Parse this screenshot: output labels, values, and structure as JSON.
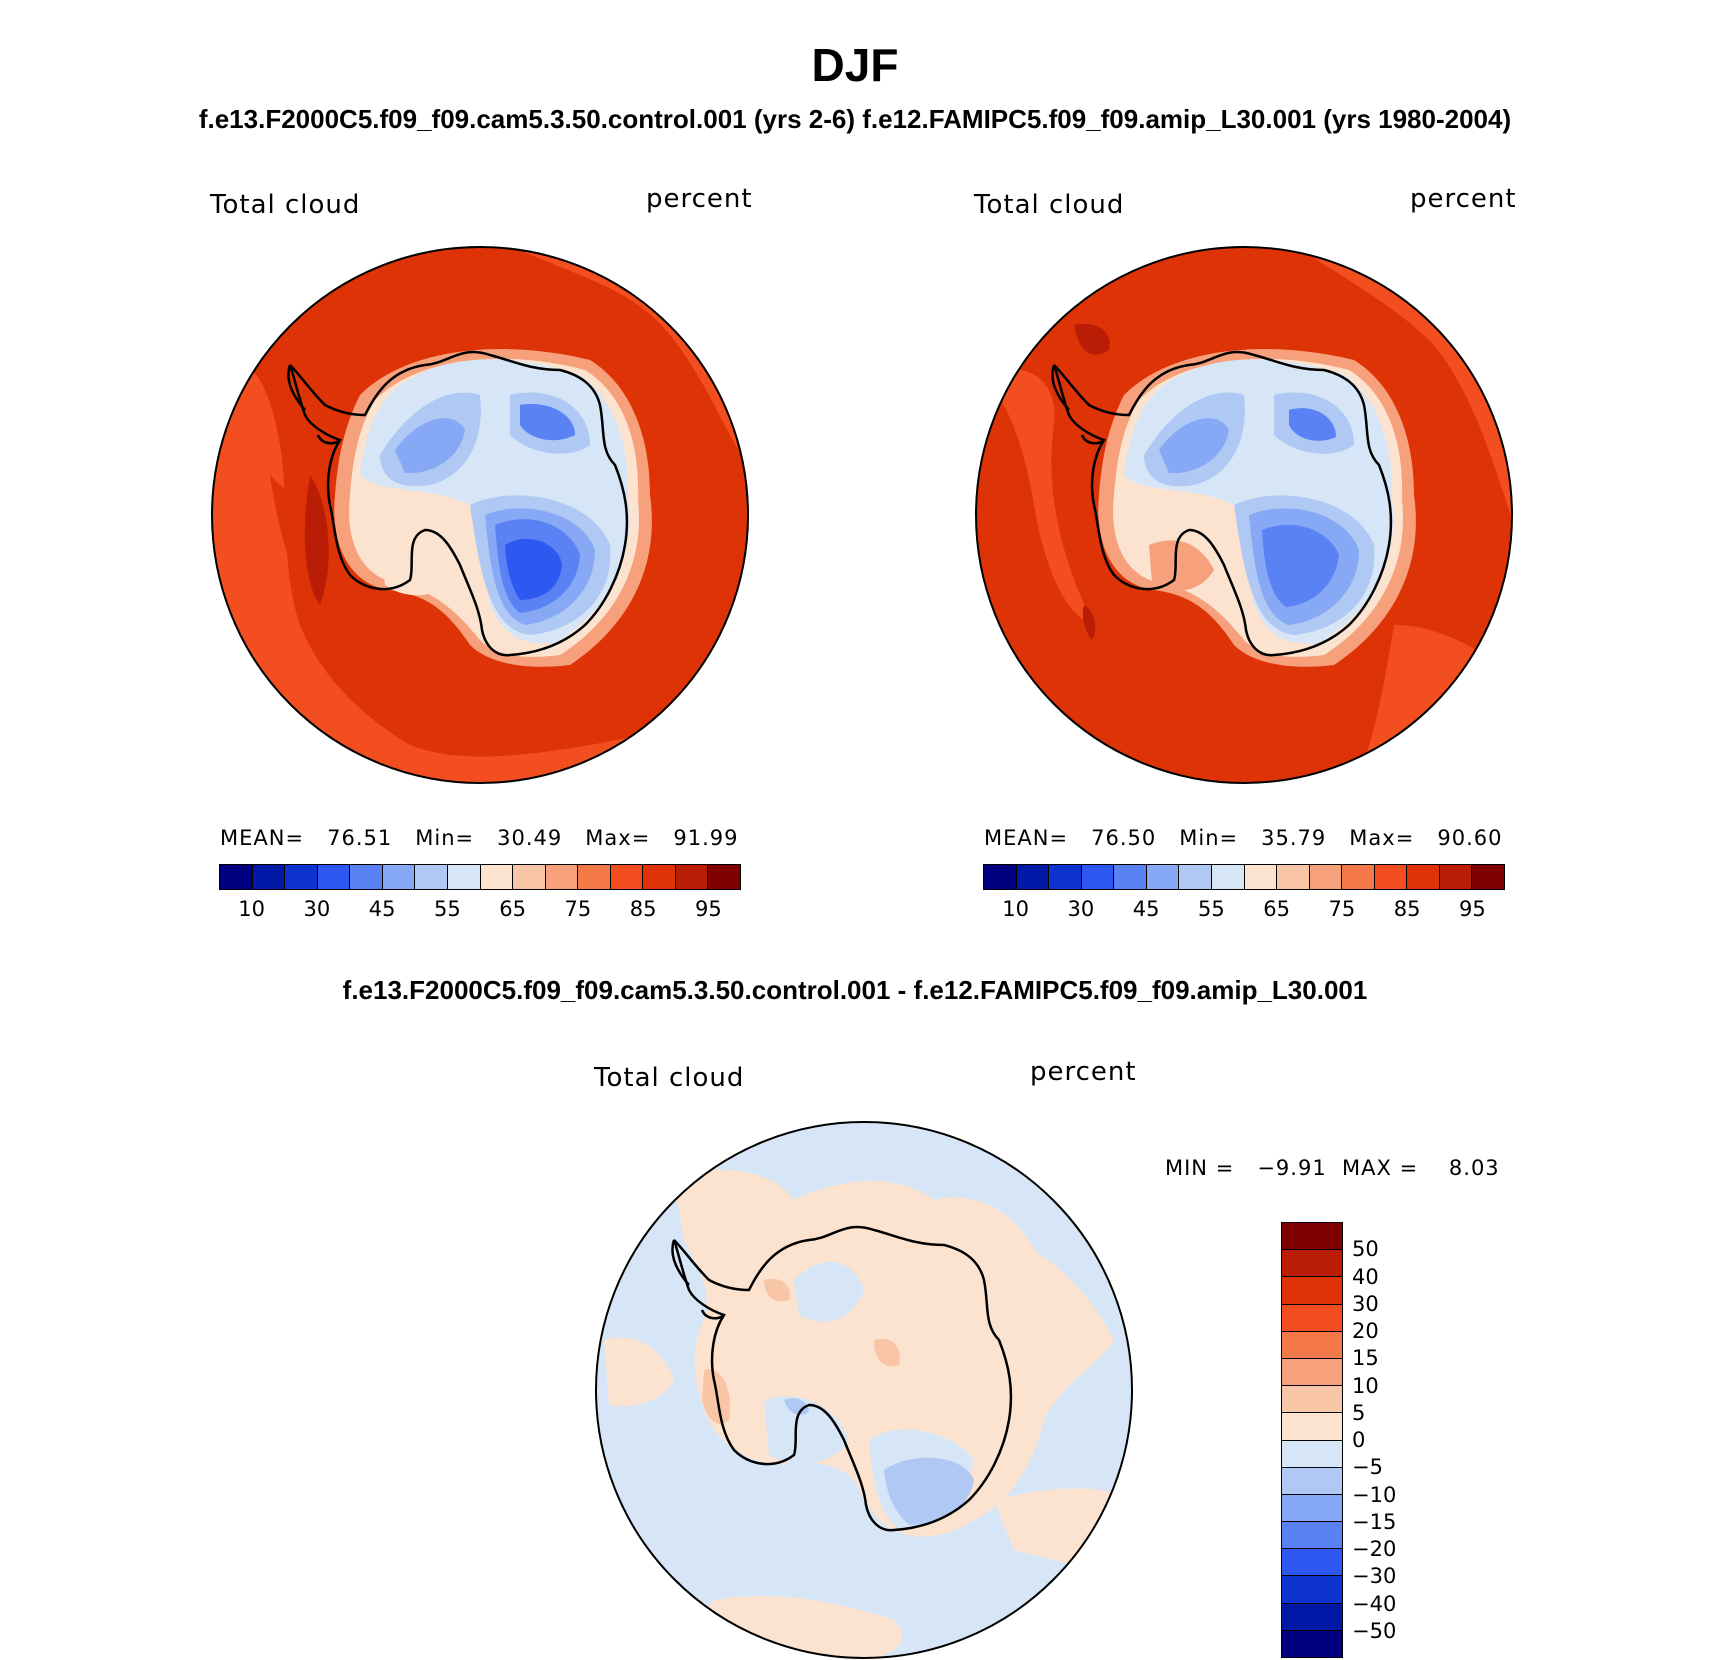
{
  "figure": {
    "title": "DJF",
    "subtitle": "f.e13.F2000C5.f09_f09.cam5.3.50.control.001 (yrs 2-6)  f.e12.FAMIPC5.f09_f09.amip_L30.001 (yrs 1980-2004)",
    "diff_title": "f.e13.F2000C5.f09_f09.cam5.3.50.control.001 - f.e12.FAMIPC5.f09_f09.amip_L30.001"
  },
  "panels": [
    {
      "variable": "Total cloud",
      "units": "percent",
      "stats": {
        "mean_label": "MEAN=",
        "mean": "76.51",
        "min_label": "Min=",
        "min": "30.49",
        "max_label": "Max=",
        "max": "91.99"
      }
    },
    {
      "variable": "Total cloud",
      "units": "percent",
      "stats": {
        "mean_label": "MEAN=",
        "mean": "76.50",
        "min_label": "Min=",
        "min": "35.79",
        "max_label": "Max=",
        "max": "90.60"
      }
    }
  ],
  "diff_panel": {
    "variable": "Total cloud",
    "units": "percent",
    "min_label": "MIN =",
    "min": "−9.91",
    "max_label": "MAX =",
    "max": "8.03"
  },
  "colorbar_main": {
    "colors": [
      "#000080",
      "#0219a8",
      "#0d34d0",
      "#2e59f0",
      "#5a82f5",
      "#87a8f4",
      "#b0c8f4",
      "#d7e6f6",
      "#fbe3d0",
      "#f8c6a7",
      "#f6a07c",
      "#f37949",
      "#f24e1f",
      "#de3306",
      "#b91d05",
      "#800000"
    ],
    "tick_labels": [
      "10",
      "30",
      "45",
      "55",
      "65",
      "75",
      "85",
      "95"
    ]
  },
  "colorbar_diff": {
    "colors": [
      "#800000",
      "#b91d05",
      "#de3306",
      "#f24e1f",
      "#f37949",
      "#f6a07c",
      "#f8c6a7",
      "#fbe3d0",
      "#d7e6f6",
      "#b0c8f4",
      "#87a8f4",
      "#5a82f5",
      "#2e59f0",
      "#0d34d0",
      "#0219a8",
      "#000080"
    ],
    "tick_labels": [
      "50",
      "40",
      "30",
      "20",
      "15",
      "10",
      "5",
      "0",
      "−5",
      "−10",
      "−15",
      "−20",
      "−30",
      "−40",
      "−50"
    ]
  },
  "map_colors": {
    "ocean_high": "#de3306",
    "ocean_mid": "#f24e1f",
    "ocean_dark": "#b91d05",
    "coast_light": "#f6a07c",
    "coast_pale": "#fbe3d0",
    "ice_light": "#d7e6f6",
    "ice_mid": "#b0c8f4",
    "ice_blue": "#87a8f4",
    "ice_deep": "#5a82f5",
    "ice_core": "#2e59f0",
    "diff_neg": "#d7e6f6",
    "diff_pos": "#fbe3d0",
    "diff_pos2": "#f8c6a7",
    "diff_neg2": "#b0c8f4"
  }
}
